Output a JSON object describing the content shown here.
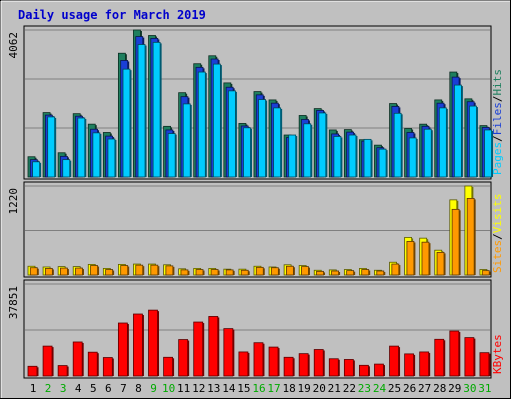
{
  "chart_data": {
    "type": "bar",
    "title": "Daily usage for March 2019",
    "categories": [
      "1",
      "2",
      "3",
      "4",
      "5",
      "6",
      "7",
      "8",
      "9",
      "10",
      "11",
      "12",
      "13",
      "14",
      "15",
      "16",
      "17",
      "18",
      "19",
      "20",
      "21",
      "22",
      "23",
      "24",
      "25",
      "26",
      "27",
      "28",
      "29",
      "30",
      "31"
    ],
    "weekend_days": [
      "2",
      "3",
      "9",
      "10",
      "16",
      "17",
      "23",
      "24",
      "30",
      "31"
    ],
    "panels": [
      {
        "id": "hits-files-pages",
        "ymax_label": "4062",
        "ymax": 4062,
        "ylabel_parts": [
          "Pages",
          "/",
          "Files",
          "/",
          "Hits"
        ],
        "series": [
          {
            "name": "Hits",
            "color": "#1e7f5e",
            "values": [
              560,
              1780,
              670,
              1750,
              1460,
              1230,
              3420,
              4062,
              3910,
              1400,
              2330,
              3130,
              3350,
              2600,
              1480,
              2360,
              2130,
              1160,
              1700,
              1890,
              1300,
              1310,
              1030,
              880,
              2030,
              1340,
              1460,
              2130,
              2900,
              2160,
              1420
            ]
          },
          {
            "name": "Files",
            "color": "#1a3fd6",
            "values": [
              480,
              1710,
              570,
              1680,
              1320,
              1130,
              3220,
              3880,
              3830,
              1300,
              2220,
              3030,
              3260,
              2480,
              1410,
              2270,
              2040,
              1090,
              1590,
              1840,
              1190,
              1240,
              990,
              810,
              1950,
              1230,
              1400,
              2040,
              2760,
              2080,
              1370
            ]
          },
          {
            "name": "Pages",
            "color": "#00ccff",
            "values": [
              420,
              1660,
              480,
              1630,
              1220,
              1050,
              2980,
              3660,
              3720,
              1200,
              2020,
              2900,
              3120,
              2380,
              1360,
              2140,
              1910,
              1160,
              1470,
              1770,
              1120,
              1160,
              1040,
              770,
              1760,
              1080,
              1320,
              1910,
              2540,
              1960,
              1300
            ]
          }
        ]
      },
      {
        "id": "visits-sites",
        "ymax_label": "1220",
        "ymax": 1220,
        "ylabel_parts": [
          "Sites",
          "/",
          "Visits"
        ],
        "series": [
          {
            "name": "Visits",
            "color": "#ffff00",
            "values": [
              120,
              110,
              115,
              115,
              145,
              90,
              145,
              150,
              150,
              140,
              85,
              90,
              90,
              80,
              80,
              120,
              110,
              140,
              130,
              65,
              70,
              75,
              90,
              65,
              175,
              515,
              505,
              340,
              1030,
              1220,
              75
            ]
          },
          {
            "name": "Sites",
            "color": "#ff9900",
            "values": [
              100,
              90,
              95,
              95,
              130,
              75,
              130,
              135,
              135,
              125,
              70,
              75,
              75,
              70,
              65,
              105,
              100,
              120,
              115,
              50,
              55,
              60,
              75,
              55,
              150,
              460,
              450,
              310,
              900,
              1050,
              60
            ]
          }
        ]
      },
      {
        "id": "kbytes",
        "ymax_label": "37851",
        "ymax": 37851,
        "ylabel_parts": [
          "KBytes"
        ],
        "series": [
          {
            "name": "KBytes",
            "color": "#ff0000",
            "values": [
              4000,
              12300,
              4300,
              14000,
              9800,
              7600,
              21800,
              25500,
              27100,
              7700,
              15000,
              22200,
              24500,
              19500,
              9900,
              13700,
              11900,
              7700,
              9200,
              10900,
              7100,
              6800,
              4400,
              4900,
              12300,
              9100,
              9900,
              15100,
              18500,
              15800,
              9600
            ]
          }
        ]
      }
    ]
  },
  "colors": {
    "background": "#ffffff",
    "frame": "#c0c0c0",
    "plot": "#c0c0c0",
    "title": "#0000cc",
    "grid": "#7f7f7f",
    "weekday_label": "#000000",
    "weekend_label": "#00aa00",
    "slash": "#000000"
  }
}
